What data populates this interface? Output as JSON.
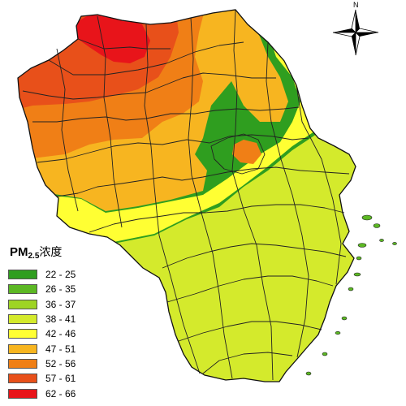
{
  "legend": {
    "title_main": "PM",
    "title_sub": "2.5",
    "title_rest": "浓度",
    "classes": [
      {
        "label": "22 - 25",
        "color": "#2f9e1f"
      },
      {
        "label": "26 - 35",
        "color": "#5cb824"
      },
      {
        "label": "36 - 37",
        "color": "#9ed424"
      },
      {
        "label": "38 - 41",
        "color": "#d4ea2c"
      },
      {
        "label": "42 - 46",
        "color": "#ffff33"
      },
      {
        "label": "47 - 51",
        "color": "#f7b520"
      },
      {
        "label": "52 - 56",
        "color": "#f07f16"
      },
      {
        "label": "57 - 61",
        "color": "#e8501a"
      },
      {
        "label": "62 - 66",
        "color": "#e8141a"
      }
    ]
  },
  "north_arrow": {
    "label": "N",
    "icon": "north-arrow-icon"
  }
}
